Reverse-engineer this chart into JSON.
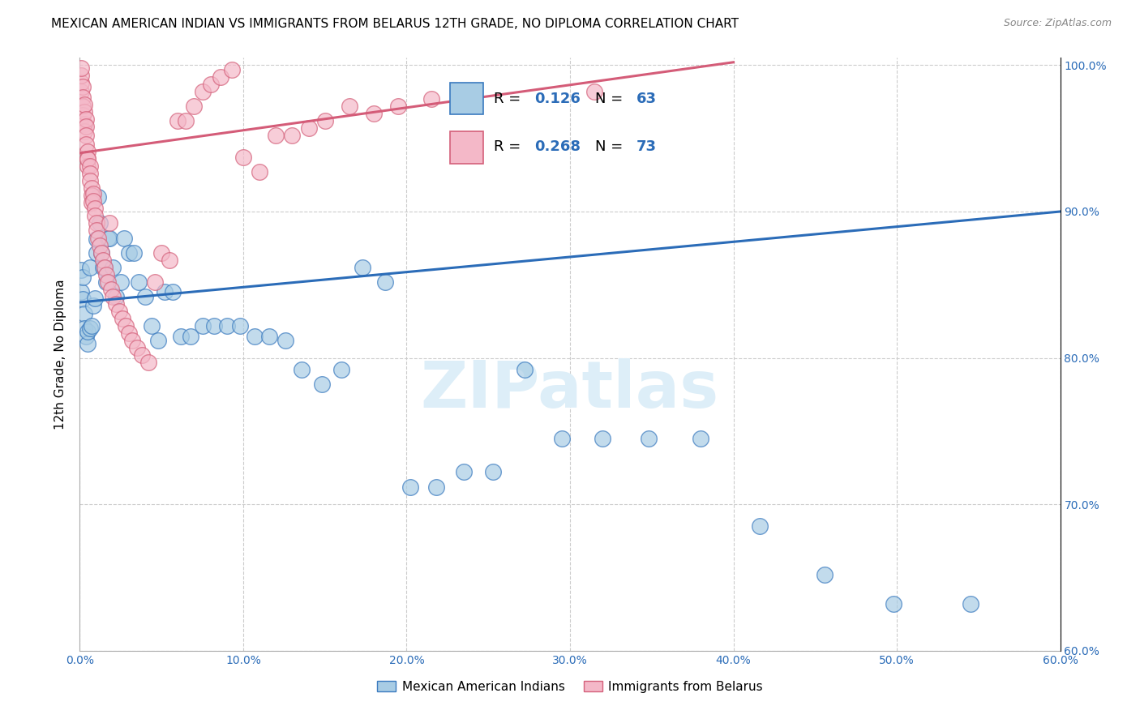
{
  "title": "MEXICAN AMERICAN INDIAN VS IMMIGRANTS FROM BELARUS 12TH GRADE, NO DIPLOMA CORRELATION CHART",
  "source": "Source: ZipAtlas.com",
  "ylabel": "12th Grade, No Diploma",
  "blue_R": 0.126,
  "blue_N": 63,
  "pink_R": 0.268,
  "pink_N": 73,
  "blue_color": "#a8cce4",
  "pink_color": "#f4b8c8",
  "blue_edge_color": "#3a7abf",
  "pink_edge_color": "#d4607a",
  "blue_line_color": "#2b6cb8",
  "pink_line_color": "#d45c78",
  "watermark_color": "#ddeef8",
  "legend1": "Mexican American Indians",
  "legend2": "Immigrants from Belarus",
  "xmin": 0.0,
  "xmax": 0.6,
  "ymin": 0.6,
  "ymax": 1.005,
  "xtick_vals": [
    0.0,
    0.1,
    0.2,
    0.3,
    0.4,
    0.5,
    0.6
  ],
  "ytick_vals": [
    0.6,
    0.7,
    0.8,
    0.9,
    1.0
  ],
  "blue_x": [
    0.001,
    0.001,
    0.002,
    0.002,
    0.003,
    0.003,
    0.004,
    0.005,
    0.005,
    0.006,
    0.006,
    0.007,
    0.008,
    0.009,
    0.01,
    0.01,
    0.011,
    0.012,
    0.013,
    0.014,
    0.015,
    0.016,
    0.017,
    0.018,
    0.02,
    0.022,
    0.025,
    0.027,
    0.03,
    0.033,
    0.036,
    0.04,
    0.044,
    0.048,
    0.052,
    0.057,
    0.062,
    0.068,
    0.075,
    0.082,
    0.09,
    0.098,
    0.107,
    0.116,
    0.126,
    0.136,
    0.148,
    0.16,
    0.173,
    0.187,
    0.202,
    0.218,
    0.235,
    0.253,
    0.272,
    0.295,
    0.32,
    0.348,
    0.38,
    0.416,
    0.456,
    0.498,
    0.545
  ],
  "blue_y": [
    0.845,
    0.86,
    0.855,
    0.84,
    0.83,
    0.82,
    0.815,
    0.81,
    0.818,
    0.862,
    0.82,
    0.822,
    0.836,
    0.841,
    0.872,
    0.881,
    0.91,
    0.892,
    0.872,
    0.862,
    0.862,
    0.852,
    0.882,
    0.882,
    0.862,
    0.842,
    0.852,
    0.882,
    0.872,
    0.872,
    0.852,
    0.842,
    0.822,
    0.812,
    0.845,
    0.845,
    0.815,
    0.815,
    0.822,
    0.822,
    0.822,
    0.822,
    0.815,
    0.815,
    0.812,
    0.792,
    0.782,
    0.792,
    0.862,
    0.852,
    0.712,
    0.712,
    0.722,
    0.722,
    0.792,
    0.745,
    0.745,
    0.745,
    0.745,
    0.685,
    0.652,
    0.632,
    0.632
  ],
  "pink_x": [
    0.0005,
    0.001,
    0.001,
    0.001,
    0.001,
    0.002,
    0.002,
    0.002,
    0.002,
    0.003,
    0.003,
    0.003,
    0.003,
    0.004,
    0.004,
    0.004,
    0.004,
    0.005,
    0.005,
    0.005,
    0.005,
    0.006,
    0.006,
    0.006,
    0.007,
    0.007,
    0.007,
    0.008,
    0.008,
    0.009,
    0.009,
    0.01,
    0.01,
    0.011,
    0.012,
    0.013,
    0.014,
    0.015,
    0.016,
    0.017,
    0.018,
    0.019,
    0.02,
    0.022,
    0.024,
    0.026,
    0.028,
    0.03,
    0.032,
    0.035,
    0.038,
    0.042,
    0.046,
    0.05,
    0.055,
    0.06,
    0.065,
    0.07,
    0.075,
    0.08,
    0.086,
    0.093,
    0.1,
    0.11,
    0.12,
    0.13,
    0.14,
    0.15,
    0.165,
    0.18,
    0.195,
    0.215,
    0.315
  ],
  "pink_y": [
    0.96,
    0.982,
    0.988,
    0.993,
    0.998,
    0.985,
    0.978,
    0.972,
    0.966,
    0.96,
    0.955,
    0.968,
    0.973,
    0.963,
    0.958,
    0.952,
    0.946,
    0.941,
    0.936,
    0.931,
    0.936,
    0.931,
    0.926,
    0.921,
    0.916,
    0.911,
    0.906,
    0.912,
    0.907,
    0.902,
    0.897,
    0.892,
    0.887,
    0.882,
    0.877,
    0.872,
    0.867,
    0.862,
    0.857,
    0.852,
    0.892,
    0.847,
    0.842,
    0.837,
    0.832,
    0.827,
    0.822,
    0.817,
    0.812,
    0.807,
    0.802,
    0.797,
    0.852,
    0.872,
    0.867,
    0.962,
    0.962,
    0.972,
    0.982,
    0.987,
    0.992,
    0.997,
    0.937,
    0.927,
    0.952,
    0.952,
    0.957,
    0.962,
    0.972,
    0.967,
    0.972,
    0.977,
    0.982
  ],
  "blue_line_x0": 0.0,
  "blue_line_x1": 0.6,
  "blue_line_y0": 0.838,
  "blue_line_y1": 0.9,
  "pink_line_x0": 0.0,
  "pink_line_x1": 0.4,
  "pink_line_y0": 0.94,
  "pink_line_y1": 1.002
}
